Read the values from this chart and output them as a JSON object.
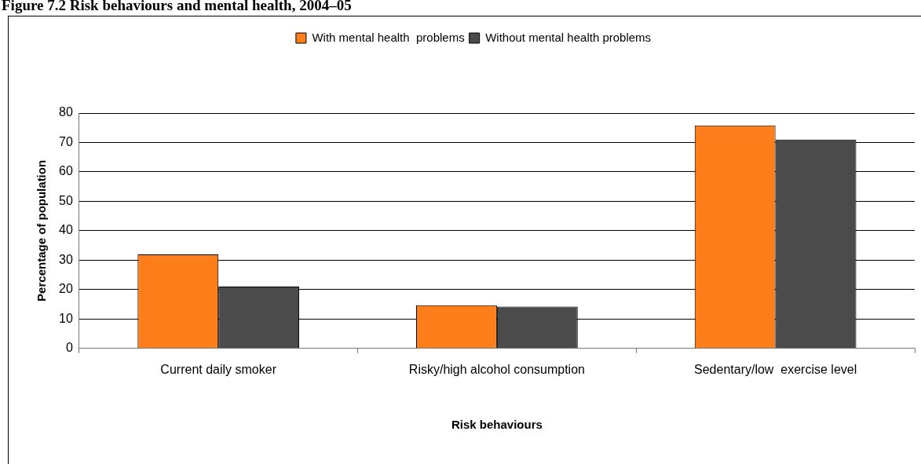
{
  "chart_data": {
    "type": "bar",
    "title": "Figure 7.2 Risk behaviours and mental health, 2004–05",
    "xlabel": "Risk behaviours",
    "ylabel": "Percentage of population",
    "categories": [
      "Current daily smoker",
      "Risky/high alcohol consumption",
      "Sedentary/low  exercise level"
    ],
    "series": [
      {
        "name": "With mental health  problems",
        "color": "#fd7e1b",
        "values": [
          32,
          14.7,
          75.8
        ]
      },
      {
        "name": "Without mental health problems",
        "color": "#4b4b4b",
        "values": [
          21,
          14.2,
          71
        ]
      }
    ],
    "ylim": [
      0,
      80
    ],
    "yticks": [
      0,
      10,
      20,
      30,
      40,
      50,
      60,
      70,
      80
    ],
    "grid": "y",
    "legend": "top"
  }
}
